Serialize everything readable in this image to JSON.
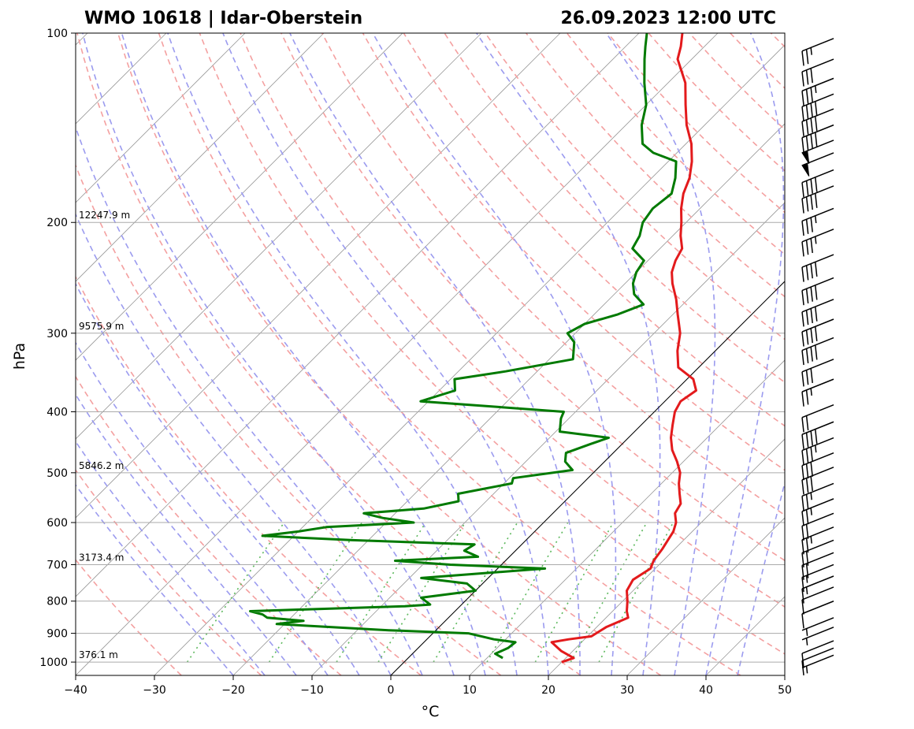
{
  "header": {
    "station": "WMO 10618 | Idar-Oberstein",
    "datetime": "26.09.2023 12:00 UTC"
  },
  "chart_data": {
    "type": "skew-t",
    "xlabel": "°C",
    "ylabel": "hPa",
    "xlim": [
      -40,
      50
    ],
    "ylim": [
      1050,
      100
    ],
    "y_scale": "log",
    "x_ticks": [
      -40,
      -30,
      -20,
      -10,
      0,
      10,
      20,
      30,
      40,
      50
    ],
    "y_ticks": [
      100,
      200,
      300,
      400,
      500,
      600,
      700,
      800,
      900,
      1000
    ],
    "x_tick_labels": [
      "−40",
      "−30",
      "−20",
      "−10",
      "0",
      "10",
      "20",
      "30",
      "40",
      "50"
    ],
    "y_tick_labels": [
      "100",
      "200",
      "300",
      "400",
      "500",
      "600",
      "700",
      "800",
      "900",
      "1000"
    ],
    "grid": true,
    "height_labels": [
      {
        "p": 1000,
        "text": "376.1 m"
      },
      {
        "p": 700,
        "text": "3173.4 m"
      },
      {
        "p": 500,
        "text": "5846.2 m"
      },
      {
        "p": 300,
        "text": "9575.9 m"
      },
      {
        "p": 200,
        "text": "12247.9 m"
      }
    ],
    "series": [
      {
        "role": "temperature",
        "color": "#e31a1c",
        "points": [
          [
            1000,
            20.0
          ],
          [
            985,
            21.0
          ],
          [
            960,
            18.5
          ],
          [
            930,
            16.2
          ],
          [
            920,
            18.0
          ],
          [
            910,
            20.5
          ],
          [
            880,
            21.2
          ],
          [
            850,
            22.8
          ],
          [
            830,
            21.8
          ],
          [
            800,
            20.6
          ],
          [
            770,
            19.2
          ],
          [
            740,
            18.6
          ],
          [
            710,
            19.4
          ],
          [
            690,
            18.8
          ],
          [
            660,
            18.4
          ],
          [
            640,
            18.0
          ],
          [
            620,
            17.6
          ],
          [
            600,
            16.8
          ],
          [
            580,
            15.5
          ],
          [
            560,
            15.0
          ],
          [
            540,
            13.6
          ],
          [
            520,
            12.2
          ],
          [
            500,
            11.0
          ],
          [
            480,
            9.2
          ],
          [
            460,
            7.1
          ],
          [
            440,
            5.4
          ],
          [
            420,
            4.0
          ],
          [
            400,
            2.6
          ],
          [
            385,
            2.0
          ],
          [
            370,
            2.6
          ],
          [
            355,
            0.8
          ],
          [
            340,
            -2.6
          ],
          [
            320,
            -4.8
          ],
          [
            300,
            -6.7
          ],
          [
            280,
            -9.4
          ],
          [
            265,
            -11.5
          ],
          [
            250,
            -14.0
          ],
          [
            240,
            -15.5
          ],
          [
            230,
            -16.5
          ],
          [
            220,
            -17.2
          ],
          [
            210,
            -19.0
          ],
          [
            200,
            -20.6
          ],
          [
            190,
            -22.4
          ],
          [
            180,
            -24.0
          ],
          [
            170,
            -25.2
          ],
          [
            160,
            -27.0
          ],
          [
            150,
            -29.3
          ],
          [
            140,
            -32.3
          ],
          [
            130,
            -35.0
          ],
          [
            120,
            -37.8
          ],
          [
            110,
            -41.8
          ],
          [
            105,
            -43.0
          ],
          [
            100,
            -44.5
          ]
        ]
      },
      {
        "role": "dewpoint",
        "color": "#007a00",
        "points": [
          [
            985,
            12.0
          ],
          [
            970,
            10.5
          ],
          [
            950,
            11.4
          ],
          [
            930,
            11.6
          ],
          [
            920,
            8.5
          ],
          [
            900,
            4.5
          ],
          [
            890,
            -6.0
          ],
          [
            870,
            -21.0
          ],
          [
            860,
            -18.0
          ],
          [
            850,
            -23.0
          ],
          [
            840,
            -24.0
          ],
          [
            830,
            -26.0
          ],
          [
            815,
            -7.0
          ],
          [
            810,
            -4.0
          ],
          [
            790,
            -6.0
          ],
          [
            770,
            0.0
          ],
          [
            750,
            -2.0
          ],
          [
            735,
            -8.5
          ],
          [
            710,
            6.0
          ],
          [
            700,
            -6.5
          ],
          [
            690,
            -14.0
          ],
          [
            680,
            -4.0
          ],
          [
            665,
            -6.5
          ],
          [
            650,
            -6.0
          ],
          [
            640,
            -22.0
          ],
          [
            630,
            -34.0
          ],
          [
            620,
            -30.0
          ],
          [
            610,
            -27.0
          ],
          [
            600,
            -16.5
          ],
          [
            590,
            -21.0
          ],
          [
            580,
            -24.0
          ],
          [
            570,
            -17.0
          ],
          [
            555,
            -13.5
          ],
          [
            540,
            -14.5
          ],
          [
            520,
            -9.0
          ],
          [
            510,
            -9.5
          ],
          [
            495,
            -3.0
          ],
          [
            480,
            -5.0
          ],
          [
            465,
            -6.0
          ],
          [
            450,
            -4.0
          ],
          [
            440,
            -2.5
          ],
          [
            430,
            -9.5
          ],
          [
            410,
            -11.0
          ],
          [
            400,
            -11.5
          ],
          [
            385,
            -31.0
          ],
          [
            370,
            -28.0
          ],
          [
            355,
            -29.5
          ],
          [
            345,
            -24.0
          ],
          [
            330,
            -17.0
          ],
          [
            310,
            -19.0
          ],
          [
            300,
            -21.0
          ],
          [
            290,
            -20.0
          ],
          [
            280,
            -17.0
          ],
          [
            270,
            -15.0
          ],
          [
            260,
            -17.5
          ],
          [
            250,
            -19.0
          ],
          [
            240,
            -20.0
          ],
          [
            230,
            -20.5
          ],
          [
            220,
            -23.5
          ],
          [
            210,
            -24.2
          ],
          [
            200,
            -25.5
          ],
          [
            190,
            -26.0
          ],
          [
            180,
            -25.5
          ],
          [
            170,
            -27.0
          ],
          [
            160,
            -29.0
          ],
          [
            155,
            -33.0
          ],
          [
            150,
            -35.5
          ],
          [
            140,
            -38.0
          ],
          [
            130,
            -40.0
          ],
          [
            120,
            -43.0
          ],
          [
            110,
            -46.0
          ],
          [
            105,
            -47.5
          ],
          [
            100,
            -49.0
          ]
        ]
      }
    ],
    "wind_barbs": [
      {
        "p": 975,
        "kt": 5
      },
      {
        "p": 950,
        "kt": 10
      },
      {
        "p": 925,
        "kt": 10
      },
      {
        "p": 880,
        "kt": 5
      },
      {
        "p": 850,
        "kt": 5
      },
      {
        "p": 800,
        "kt": 10
      },
      {
        "p": 760,
        "kt": 10
      },
      {
        "p": 730,
        "kt": 15
      },
      {
        "p": 700,
        "kt": 15
      },
      {
        "p": 670,
        "kt": 20
      },
      {
        "p": 640,
        "kt": 20
      },
      {
        "p": 610,
        "kt": 25
      },
      {
        "p": 580,
        "kt": 20
      },
      {
        "p": 550,
        "kt": 25
      },
      {
        "p": 520,
        "kt": 25
      },
      {
        "p": 490,
        "kt": 30
      },
      {
        "p": 465,
        "kt": 30
      },
      {
        "p": 440,
        "kt": 35
      },
      {
        "p": 415,
        "kt": 40
      },
      {
        "p": 390,
        "kt": 20
      },
      {
        "p": 355,
        "kt": 25
      },
      {
        "p": 330,
        "kt": 30
      },
      {
        "p": 305,
        "kt": 40
      },
      {
        "p": 285,
        "kt": 40
      },
      {
        "p": 265,
        "kt": 40
      },
      {
        "p": 245,
        "kt": 40
      },
      {
        "p": 225,
        "kt": 40
      },
      {
        "p": 205,
        "kt": 35
      },
      {
        "p": 190,
        "kt": 35
      },
      {
        "p": 175,
        "kt": 40
      },
      {
        "p": 165,
        "kt": 40
      },
      {
        "p": 155,
        "kt": 50
      },
      {
        "p": 148,
        "kt": 50
      },
      {
        "p": 140,
        "kt": 40
      },
      {
        "p": 132,
        "kt": 40
      },
      {
        "p": 125,
        "kt": 40
      },
      {
        "p": 118,
        "kt": 35
      },
      {
        "p": 110,
        "kt": 30
      },
      {
        "p": 102,
        "kt": 25
      }
    ]
  },
  "colors": {
    "temperature": "#e31a1c",
    "dewpoint": "#007a00",
    "dry_adiabat": "#f4a0a0",
    "moist_adiabat": "#9b9bef",
    "mixing_ratio": "#5cb85c",
    "isotherm": "#999999",
    "isobar": "#aaaaaa"
  }
}
